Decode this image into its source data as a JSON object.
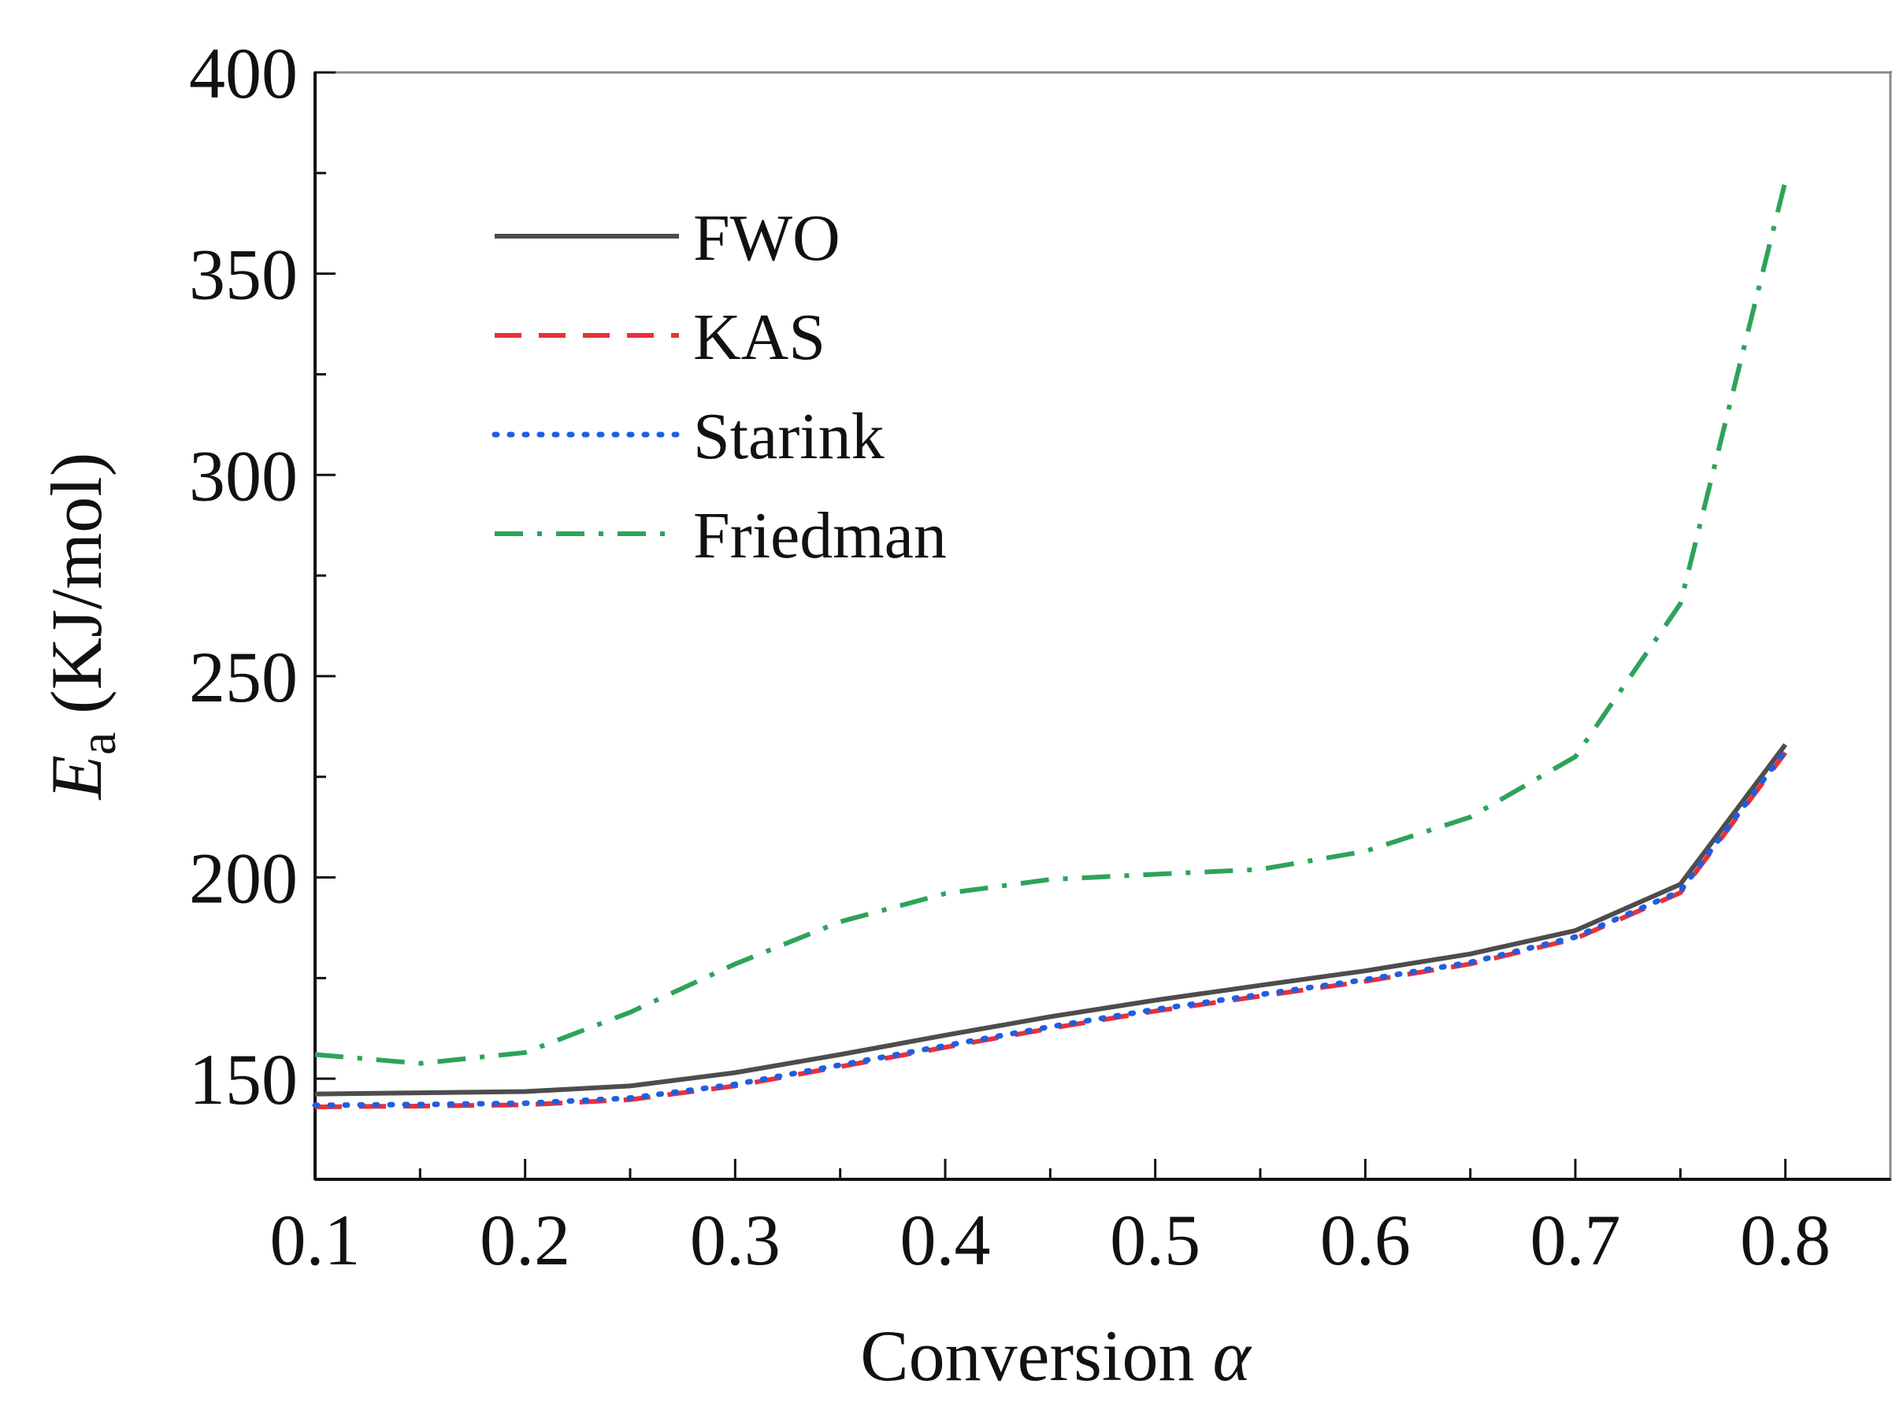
{
  "chart_data": {
    "type": "line",
    "title": "",
    "xlabel": "Conversion",
    "xlabel_symbol": "α",
    "ylabel_symbol": "E",
    "ylabel_subscript": "a",
    "ylabel_unit": " (KJ/mol)",
    "xlim": [
      0.1,
      0.85
    ],
    "ylim": [
      125,
      400
    ],
    "x_ticks": [
      0.1,
      0.2,
      0.3,
      0.4,
      0.5,
      0.6,
      0.7,
      0.8
    ],
    "x_tick_labels": [
      "0.1",
      "0.2",
      "0.3",
      "0.4",
      "0.5",
      "0.6",
      "0.7",
      "0.8"
    ],
    "y_ticks": [
      150,
      200,
      250,
      300,
      350,
      400
    ],
    "y_tick_labels": [
      "150",
      "200",
      "250",
      "300",
      "350",
      "400"
    ],
    "grid": false,
    "legend_position": "upper-left",
    "series": [
      {
        "name": "FWO",
        "color": "#4d4d4d",
        "style": "solid",
        "x": [
          0.1,
          0.15,
          0.2,
          0.25,
          0.3,
          0.35,
          0.4,
          0.45,
          0.5,
          0.55,
          0.6,
          0.65,
          0.7,
          0.75,
          0.8
        ],
        "y": [
          146.2,
          146.5,
          146.8,
          148.2,
          151.5,
          156.0,
          160.8,
          165.4,
          169.5,
          173.2,
          176.8,
          181.0,
          186.8,
          198.3,
          233.0
        ]
      },
      {
        "name": "KAS",
        "color": "#e8303a",
        "style": "dashed",
        "x": [
          0.1,
          0.15,
          0.2,
          0.25,
          0.3,
          0.35,
          0.4,
          0.45,
          0.5,
          0.55,
          0.6,
          0.65,
          0.7,
          0.75,
          0.8
        ],
        "y": [
          143.0,
          143.2,
          143.5,
          144.8,
          148.2,
          153.0,
          157.8,
          162.5,
          166.8,
          170.5,
          174.2,
          178.5,
          184.8,
          196.2,
          231.0
        ]
      },
      {
        "name": "Starink",
        "color": "#1f5ee0",
        "style": "dotted",
        "x": [
          0.1,
          0.15,
          0.2,
          0.25,
          0.3,
          0.35,
          0.4,
          0.45,
          0.5,
          0.55,
          0.6,
          0.65,
          0.7,
          0.75,
          0.8
        ],
        "y": [
          143.4,
          143.6,
          143.9,
          145.2,
          148.6,
          153.4,
          158.2,
          162.9,
          167.2,
          170.9,
          174.6,
          178.9,
          185.2,
          196.6,
          231.5
        ]
      },
      {
        "name": "Friedman",
        "color": "#2ea35a",
        "style": "dashdot",
        "x": [
          0.1,
          0.15,
          0.2,
          0.25,
          0.3,
          0.35,
          0.4,
          0.45,
          0.5,
          0.55,
          0.6,
          0.65,
          0.7,
          0.75,
          0.8
        ],
        "y": [
          156.0,
          153.8,
          156.5,
          166.5,
          178.5,
          189.0,
          196.0,
          199.5,
          200.8,
          202.0,
          206.5,
          215.0,
          230.0,
          268.0,
          373.0
        ]
      }
    ]
  }
}
